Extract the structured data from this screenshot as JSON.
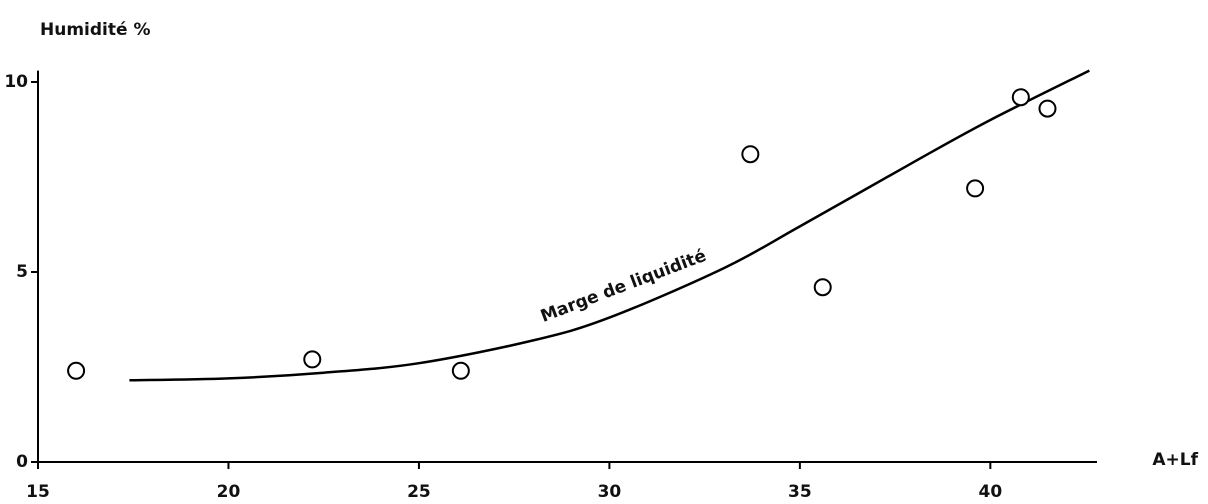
{
  "chart_data": {
    "type": "scatter",
    "ylabel": "Humidité %",
    "xlabel": "A+Lf",
    "x": [
      16,
      22.2,
      26.1,
      33.7,
      35.6,
      39.6,
      40.8,
      41.5
    ],
    "values": [
      2.4,
      2.7,
      2.4,
      8.1,
      4.6,
      7.2,
      9.6,
      9.3
    ],
    "fit": {
      "label": "Marge de liquidité",
      "x": [
        17.4,
        20,
        22.5,
        25,
        28,
        30,
        33,
        35,
        38,
        40,
        42.6
      ],
      "values": [
        2.15,
        2.2,
        2.35,
        2.6,
        3.2,
        3.8,
        5.1,
        6.2,
        7.9,
        9.0,
        10.3
      ]
    },
    "color": "#000000",
    "xlim": [
      15,
      42.8
    ],
    "xticks": [
      15,
      20,
      25,
      30,
      35,
      40
    ],
    "ylim": [
      0,
      10.3
    ],
    "yticks": [
      0,
      5,
      10
    ]
  }
}
